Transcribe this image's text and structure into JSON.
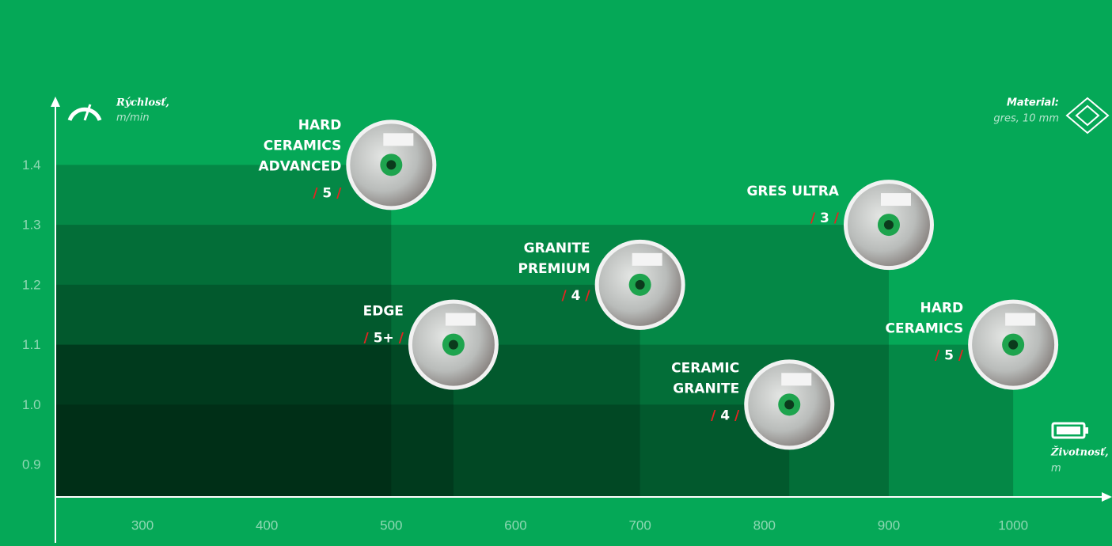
{
  "chart_data": {
    "type": "scatter",
    "y_label": "Rýchlosť,",
    "y_unit": "m/min",
    "x_label": "Životnosť,",
    "x_unit": "m",
    "material_label": "Material:",
    "material_value": "gres, 10 mm",
    "separator": "/",
    "labels": [
      [
        "HARD",
        "CERAMICS",
        "ADVANCED"
      ],
      [
        "GRES ULTRA"
      ],
      [
        "GRANITE",
        "PREMIUM"
      ],
      [
        "EDGE"
      ],
      [
        "HARD",
        "CERAMICS"
      ],
      [
        "CERAMIC",
        "GRANITE"
      ]
    ],
    "ratings": [
      "5",
      "3",
      "4",
      "5+",
      "5",
      "4"
    ],
    "x": [
      500,
      900,
      700,
      550,
      1000,
      820
    ],
    "values": [
      1.4,
      1.3,
      1.2,
      1.1,
      1.1,
      1.0
    ],
    "xlim": [
      230,
      1075
    ],
    "ylim": [
      0.846,
      1.51
    ],
    "xticks": [
      300,
      400,
      500,
      600,
      700,
      800,
      900,
      1000
    ],
    "yticks": [
      0.9,
      {
        "value": 1,
        "label": "1.0"
      },
      1.1,
      1.2,
      1.3,
      1.4
    ]
  }
}
